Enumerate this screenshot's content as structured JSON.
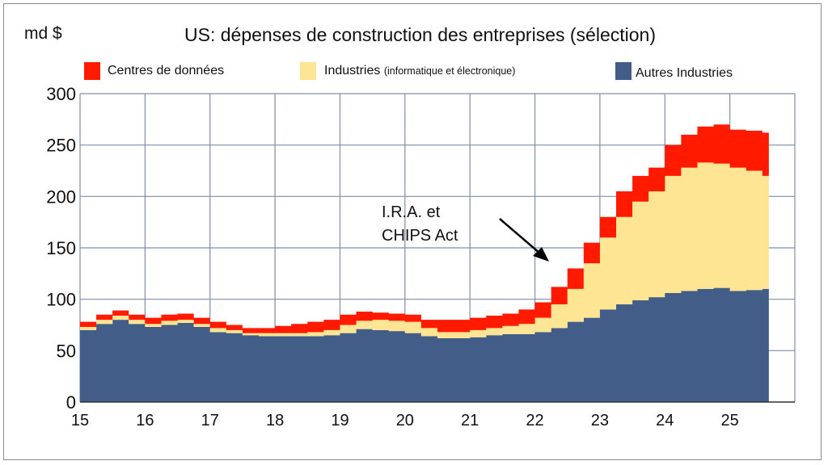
{
  "chart_data": {
    "type": "area",
    "stacked": true,
    "title": "US: dépenses de construction des entreprises (sélection)",
    "ylabel": "md $",
    "xlabel": "",
    "ylim": [
      0,
      300
    ],
    "xlim": [
      15,
      26
    ],
    "yticks": [
      "0",
      "50",
      "100",
      "150",
      "200",
      "250",
      "300"
    ],
    "xticks": [
      "15",
      "16",
      "17",
      "18",
      "19",
      "20",
      "21",
      "22",
      "23",
      "24",
      "25"
    ],
    "grid": true,
    "legend_position": "top",
    "x": [
      15,
      15.25,
      15.5,
      15.75,
      16,
      16.25,
      16.5,
      16.75,
      17,
      17.25,
      17.5,
      17.75,
      18,
      18.25,
      18.5,
      18.75,
      19,
      19.25,
      19.5,
      19.75,
      20,
      20.25,
      20.5,
      20.75,
      21,
      21.25,
      21.5,
      21.75,
      22,
      22.25,
      22.5,
      22.75,
      23,
      23.25,
      23.5,
      23.75,
      24,
      24.25,
      24.5,
      24.75,
      25,
      25.25,
      25.5
    ],
    "series": [
      {
        "name": "Autres Industries",
        "color": "#425d87",
        "values": [
          70,
          76,
          80,
          76,
          73,
          75,
          77,
          73,
          68,
          67,
          65,
          64,
          64,
          64,
          64,
          65,
          67,
          71,
          70,
          69,
          67,
          64,
          62,
          62,
          63,
          65,
          66,
          66,
          68,
          72,
          78,
          82,
          90,
          95,
          99,
          102,
          106,
          108,
          110,
          111,
          108,
          109,
          110
        ]
      },
      {
        "name": "Industries",
        "name_suffix": "(informatique et électronique)",
        "color": "#fde594",
        "values": [
          3,
          4,
          4,
          4,
          3,
          4,
          3,
          3,
          4,
          3,
          2,
          3,
          3,
          3,
          4,
          5,
          8,
          8,
          10,
          10,
          11,
          8,
          6,
          6,
          7,
          7,
          8,
          10,
          14,
          23,
          32,
          53,
          70,
          85,
          96,
          103,
          114,
          120,
          123,
          121,
          120,
          116,
          110
        ]
      },
      {
        "name": "Centres de données",
        "color": "#ff1a00",
        "values": [
          5,
          5,
          5,
          5,
          6,
          6,
          6,
          6,
          6,
          5,
          5,
          5,
          7,
          9,
          10,
          10,
          10,
          9,
          7,
          7,
          7,
          8,
          12,
          12,
          12,
          12,
          12,
          14,
          15,
          17,
          20,
          20,
          20,
          25,
          25,
          23,
          30,
          32,
          35,
          38,
          37,
          39,
          42
        ]
      }
    ],
    "x_end": 25.6,
    "annotation": {
      "lines": [
        "I.R.A. et",
        "CHIPS Act"
      ],
      "points_to_x": 22.4
    }
  }
}
